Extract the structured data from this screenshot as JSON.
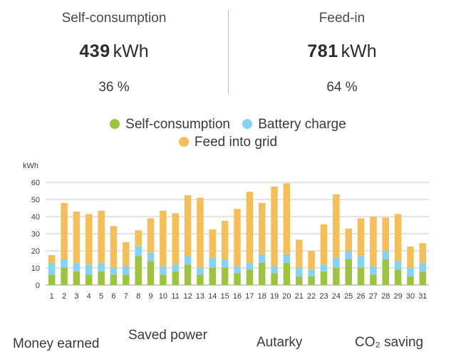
{
  "stats": {
    "self_consumption": {
      "title": "Self-consumption",
      "value": "439",
      "unit": "kWh",
      "percent": "36 %"
    },
    "feed_in": {
      "title": "Feed-in",
      "value": "781",
      "unit": "kWh",
      "percent": "64 %"
    }
  },
  "legend": {
    "self_consumption": "Self-consumption",
    "battery_charge": "Battery charge",
    "feed_into_grid": "Feed into grid"
  },
  "colors": {
    "self_consumption": "#9dc43f",
    "battery_charge": "#86d2f2",
    "feed_into_grid": "#f6be56"
  },
  "bottom_labels": {
    "money_earned": "Money earned",
    "saved_power": "Saved power",
    "autarky": "Autarky",
    "co2_saving": "CO₂ saving"
  },
  "chart_data": {
    "type": "bar",
    "stacked": true,
    "ylabel": "kWh",
    "ylim": [
      0,
      60
    ],
    "yticks": [
      0,
      10,
      20,
      30,
      40,
      50,
      60
    ],
    "grid": true,
    "categories": [
      "1",
      "2",
      "3",
      "4",
      "5",
      "6",
      "7",
      "8",
      "9",
      "10",
      "11",
      "12",
      "13",
      "14",
      "15",
      "16",
      "17",
      "18",
      "19",
      "20",
      "21",
      "22",
      "23",
      "24",
      "25",
      "26",
      "27",
      "28",
      "29",
      "30",
      "31"
    ],
    "series": [
      {
        "name": "Self-consumption",
        "values": [
          6,
          10,
          8,
          6,
          8,
          6,
          6,
          17,
          14,
          6,
          8,
          12,
          6,
          10,
          10,
          7,
          9,
          13,
          7,
          13,
          5,
          5,
          8,
          10,
          15,
          10,
          6,
          15,
          9,
          5,
          8
        ]
      },
      {
        "name": "Battery charge",
        "values": [
          7,
          5,
          5,
          6,
          5,
          4,
          5,
          6,
          5,
          5,
          4,
          5,
          4,
          6,
          5,
          4,
          4,
          5,
          4,
          5,
          5,
          4,
          4,
          6,
          5,
          7,
          5,
          5,
          5,
          5,
          5
        ]
      },
      {
        "name": "Feed into grid",
        "values": [
          4.5,
          33,
          30,
          29.5,
          30.5,
          24.5,
          14,
          9,
          20,
          32.5,
          30,
          35.5,
          41,
          16.5,
          22.5,
          33.5,
          41.5,
          30,
          46.5,
          41.5,
          16.5,
          11,
          23.5,
          37,
          13,
          22,
          29,
          19.5,
          27.5,
          12.5,
          11.5
        ]
      }
    ]
  }
}
